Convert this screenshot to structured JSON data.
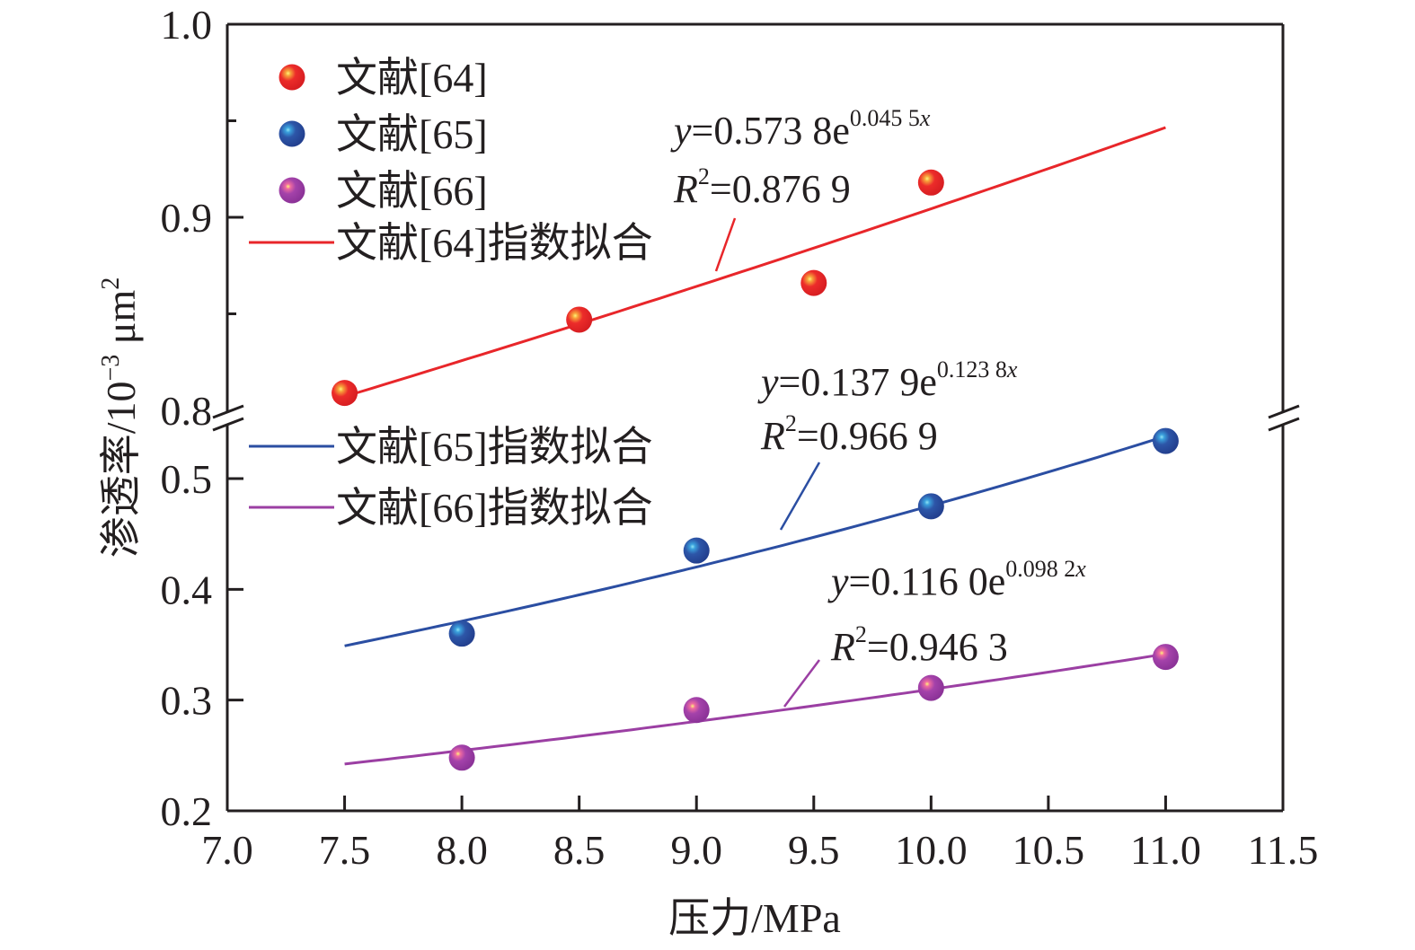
{
  "chart_data": {
    "type": "scatter",
    "title": "",
    "xlabel": "压力/MPa",
    "ylabel": "渗透率/10⁻³ μm²",
    "ylabel_parts": {
      "main": "渗透率/10",
      "exp": "−3",
      "unit": " μm",
      "unit_exp": "2"
    },
    "xlim": [
      7.0,
      11.5
    ],
    "x_ticks": [
      "7.0",
      "7.5",
      "8.0",
      "8.5",
      "9.0",
      "9.5",
      "10.0",
      "10.5",
      "11.0",
      "11.5"
    ],
    "x_tick_values": [
      7.0,
      7.5,
      8.0,
      8.5,
      9.0,
      9.5,
      10.0,
      10.5,
      11.0,
      11.5
    ],
    "y_axis_break": true,
    "y_segments": [
      {
        "range": [
          0.2,
          0.55
        ],
        "major_ticks": [
          0.2,
          0.3,
          0.4,
          0.5
        ],
        "tick_labels": [
          "0.2",
          "0.3",
          "0.4",
          "0.5"
        ]
      },
      {
        "range": [
          0.8,
          1.0
        ],
        "major_ticks": [
          0.8,
          0.9,
          1.0
        ],
        "minor_ticks": [
          0.85,
          0.95
        ],
        "tick_labels": [
          "0.8",
          "0.9",
          "1.0"
        ]
      }
    ],
    "grid": false,
    "legend_position": "top-left",
    "series": [
      {
        "name": "文献[64]",
        "color": "#e8262a",
        "points": [
          [
            7.5,
            0.809
          ],
          [
            8.5,
            0.847
          ],
          [
            9.5,
            0.866
          ],
          [
            10.0,
            0.918
          ]
        ],
        "fit": {
          "name": "文献[64]指数拟合",
          "a": 0.5738,
          "b": 0.0455,
          "x_range": [
            7.5,
            11.0
          ],
          "equation": {
            "prefix": "y",
            "body": "=0.573 8e",
            "exp": "0.045 5",
            "exp_var": "x"
          },
          "r2": {
            "prefix": "R",
            "sup": "2",
            "body": "=0.876 9"
          }
        }
      },
      {
        "name": "文献[65]",
        "color": "#2b4ea2",
        "points": [
          [
            8.0,
            0.36
          ],
          [
            9.0,
            0.435
          ],
          [
            10.0,
            0.475
          ],
          [
            11.0,
            0.534
          ]
        ],
        "fit": {
          "name": "文献[65]指数拟合",
          "a": 0.1379,
          "b": 0.1238,
          "x_range": [
            7.5,
            11.0
          ],
          "equation": {
            "prefix": "y",
            "body": "=0.137 9e",
            "exp": "0.123 8",
            "exp_var": "x"
          },
          "r2": {
            "prefix": "R",
            "sup": "2",
            "body": "=0.966 9"
          }
        }
      },
      {
        "name": "文献[66]",
        "color": "#9b3fa3",
        "points": [
          [
            8.0,
            0.248
          ],
          [
            9.0,
            0.291
          ],
          [
            10.0,
            0.311
          ],
          [
            11.0,
            0.339
          ]
        ],
        "fit": {
          "name": "文献[66]指数拟合",
          "a": 0.116,
          "b": 0.0982,
          "x_range": [
            7.5,
            11.0
          ],
          "equation": {
            "prefix": "y",
            "body": "=0.116 0e",
            "exp": "0.098 2",
            "exp_var": "x"
          },
          "r2": {
            "prefix": "R",
            "sup": "2",
            "body": "=0.946 3"
          }
        }
      }
    ],
    "legend": [
      {
        "label": "文献[64]",
        "kind": "marker",
        "series": 0
      },
      {
        "label": "文献[65]",
        "kind": "marker",
        "series": 1
      },
      {
        "label": "文献[66]",
        "kind": "marker",
        "series": 2
      },
      {
        "label": "文献[64]指数拟合",
        "kind": "line",
        "series": 0
      },
      {
        "label": "文献[65]指数拟合",
        "kind": "line",
        "series": 1
      },
      {
        "label": "文献[66]指数拟合",
        "kind": "line",
        "series": 2
      }
    ]
  }
}
